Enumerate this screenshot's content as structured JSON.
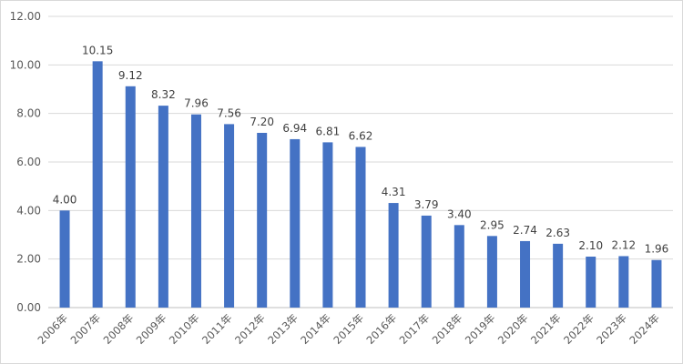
{
  "chart_data": {
    "type": "bar",
    "title": "",
    "xlabel": "",
    "ylabel": "",
    "categories": [
      "2006年",
      "2007年",
      "2008年",
      "2009年",
      "2010年",
      "2011年",
      "2012年",
      "2013年",
      "2014年",
      "2015年",
      "2016年",
      "2017年",
      "2018年",
      "2019年",
      "2020年",
      "2021年",
      "2022年",
      "2023年",
      "2024年"
    ],
    "values": [
      4.0,
      10.15,
      9.12,
      8.32,
      7.96,
      7.56,
      7.2,
      6.94,
      6.81,
      6.62,
      4.31,
      3.79,
      3.4,
      2.95,
      2.74,
      2.63,
      2.1,
      2.12,
      1.96
    ],
    "value_labels": [
      "4.00",
      "10.15",
      "9.12",
      "8.32",
      "7.96",
      "7.56",
      "7.20",
      "6.94",
      "6.81",
      "6.62",
      "4.31",
      "3.79",
      "3.40",
      "2.95",
      "2.74",
      "2.63",
      "2.10",
      "2.12",
      "1.96"
    ],
    "ylim": [
      0,
      12
    ],
    "yticks": [
      "0.00",
      "2.00",
      "4.00",
      "6.00",
      "8.00",
      "10.00",
      "12.00"
    ],
    "grid": true,
    "legend": "none",
    "bar_color": "#4472c4",
    "grid_color": "#d9d9d9",
    "x_tick_rotation_deg": -45
  }
}
